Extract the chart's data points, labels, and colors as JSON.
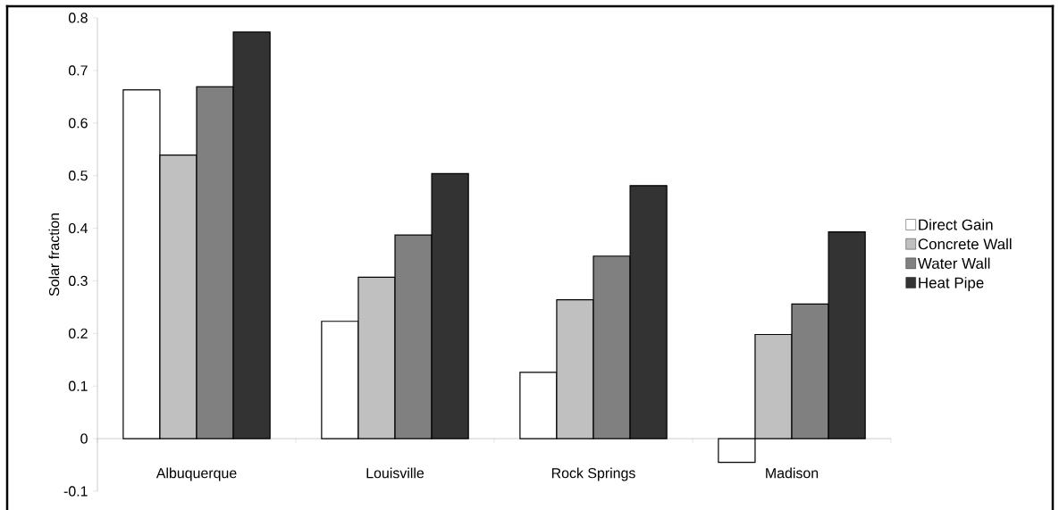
{
  "chart_data": {
    "type": "bar",
    "ylabel": "Solar fraction",
    "categories": [
      "Albuquerque",
      "Louisville",
      "Rock Springs",
      "Madison"
    ],
    "series": [
      {
        "name": "Direct Gain",
        "color": "#ffffff",
        "values": [
          0.663,
          0.223,
          0.126,
          -0.045
        ]
      },
      {
        "name": "Concrete Wall",
        "color": "#c0c0c0",
        "values": [
          0.539,
          0.307,
          0.264,
          0.198
        ]
      },
      {
        "name": "Water Wall",
        "color": "#808080",
        "values": [
          0.669,
          0.387,
          0.347,
          0.256
        ]
      },
      {
        "name": "Heat Pipe",
        "color": "#333333",
        "values": [
          0.773,
          0.504,
          0.481,
          0.393
        ]
      }
    ],
    "ylim": [
      -0.1,
      0.8
    ],
    "yticks": [
      -0.1,
      0,
      0.1,
      0.2,
      0.3,
      0.4,
      0.5,
      0.6,
      0.7,
      0.8
    ],
    "grid": false,
    "legend": "right"
  }
}
